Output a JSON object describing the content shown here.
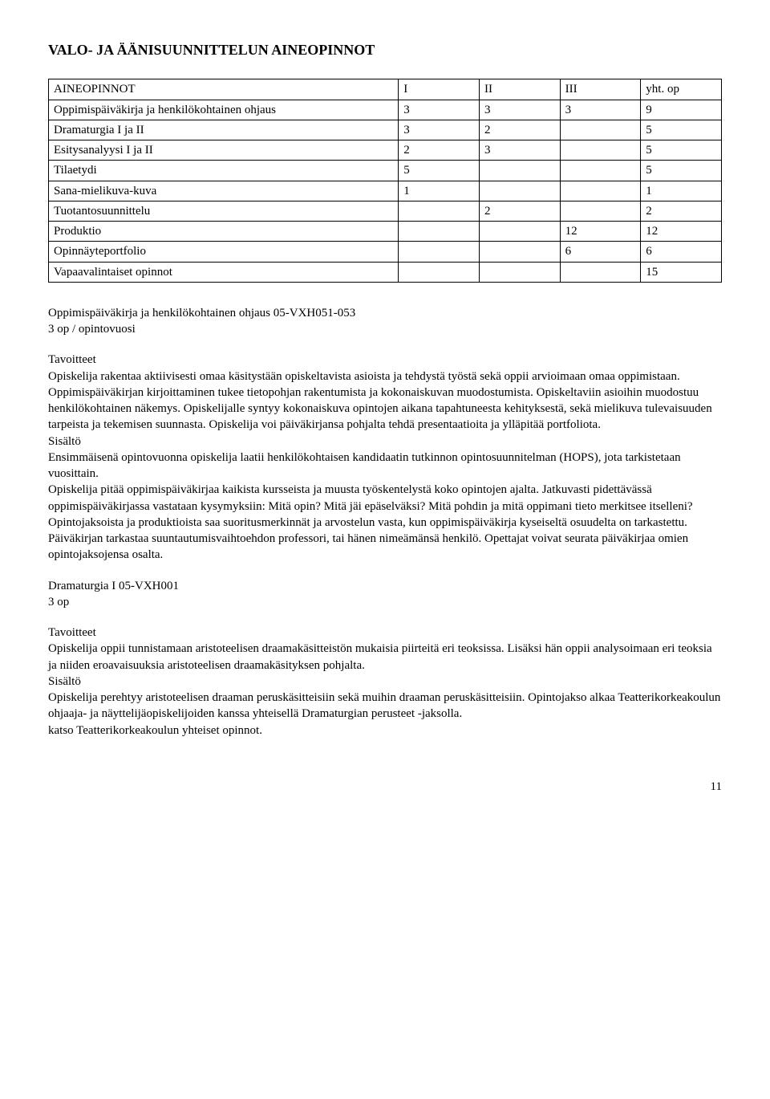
{
  "page": {
    "title": "VALO- JA ÄÄNISUUNNITTELUN AINEOPINNOT",
    "page_number": "11"
  },
  "table": {
    "header": [
      "AINEOPINNOT",
      "I",
      "II",
      "III",
      "yht. op"
    ],
    "rows": [
      [
        "Oppimispäiväkirja ja henkilökohtainen ohjaus",
        "3",
        "3",
        "3",
        "9"
      ],
      [
        "Dramaturgia I ja II",
        "3",
        "2",
        "",
        "5"
      ],
      [
        "Esitysanalyysi I ja II",
        "2",
        "3",
        "",
        "5"
      ],
      [
        "Tilaetydi",
        "5",
        "",
        "",
        "5"
      ],
      [
        "Sana-mielikuva-kuva",
        "1",
        "",
        "",
        "1"
      ],
      [
        "Tuotantosuunnittelu",
        "",
        "2",
        "",
        "2"
      ],
      [
        "Produktio",
        "",
        "",
        "12",
        "12"
      ],
      [
        "Opinnäyteportfolio",
        "",
        "",
        "6",
        "6"
      ],
      [
        "Vapaavalintaiset opinnot",
        "",
        "",
        "",
        "15"
      ]
    ]
  },
  "course1": {
    "title": "Oppimispäiväkirja ja henkilökohtainen ohjaus 05-VXH051-053",
    "credits": "3 op / opintovuosi",
    "tav_label": "Tavoitteet",
    "tav_text": "Opiskelija rakentaa aktiivisesti omaa käsitystään opiskeltavista asioista ja tehdystä työstä sekä oppii arvioimaan omaa oppimistaan. Oppimispäiväkirjan kirjoittaminen tukee tietopohjan rakentumista ja kokonaiskuvan muodostumista. Opiskeltaviin asioihin muodostuu henkilökohtainen näkemys. Opiskelijalle syntyy kokonaiskuva opintojen aikana tapahtuneesta kehityksestä, sekä mielikuva tulevaisuuden tarpeista ja tekemisen suunnasta. Opiskelija voi päiväkirjansa pohjalta tehdä presentaatioita ja ylläpitää portfoliota.",
    "sis_label": "Sisältö",
    "sis_p1": "Ensimmäisenä opintovuonna opiskelija laatii henkilökohtaisen kandidaatin tutkinnon opintosuunnitelman (HOPS), jota tarkistetaan vuosittain.",
    "sis_p2": "Opiskelija pitää oppimispäiväkirjaa kaikista kursseista ja muusta työskentelystä koko opintojen ajalta. Jatkuvasti pidettävässä oppimispäiväkirjassa vastataan kysymyksiin: Mitä opin? Mitä jäi epäselväksi? Mitä pohdin ja mitä oppimani tieto merkitsee itselleni?",
    "sis_p3": "Opintojaksoista ja produktioista saa suoritusmerkinnät ja arvostelun vasta, kun oppimispäiväkirja kyseiseltä osuudelta on tarkastettu. Päiväkirjan tarkastaa suuntautumisvaihtoehdon professori, tai hänen nimeämänsä henkilö. Opettajat voivat seurata päiväkirjaa omien opintojaksojensa osalta."
  },
  "course2": {
    "title": "Dramaturgia I 05-VXH001",
    "credits": "3 op",
    "tav_label": "Tavoitteet",
    "tav_text": "Opiskelija oppii tunnistamaan aristoteelisen draamakäsitteistön mukaisia piirteitä eri teoksissa. Lisäksi hän oppii analysoimaan eri teoksia ja niiden eroavaisuuksia aristoteelisen draamakäsityksen pohjalta.",
    "sis_label": "Sisältö",
    "sis_p1": "Opiskelija perehtyy aristoteelisen draaman peruskäsitteisiin sekä muihin draaman peruskäsitteisiin. Opintojakso alkaa Teatterikorkeakoulun ohjaaja- ja näyttelijäopiskelijoiden kanssa yhteisellä Dramaturgian perusteet -jaksolla.",
    "sis_p2": "katso Teatterikorkeakoulun yhteiset opinnot."
  }
}
